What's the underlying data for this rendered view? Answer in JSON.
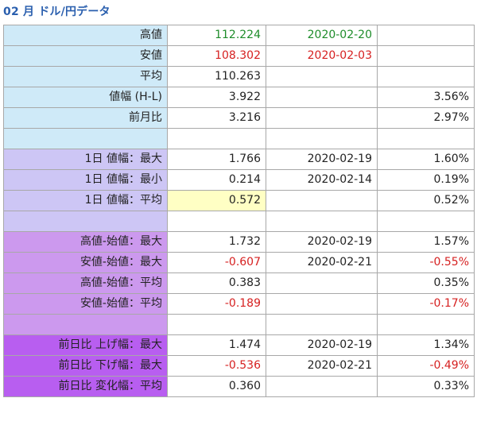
{
  "page_title": "02 月 ドル/円データ",
  "colors": {
    "label_blue": "#cfeaf8",
    "label_lavender": "#cdc6f5",
    "label_violet": "#cc99ee",
    "label_magenta": "#b85ef0",
    "highlight": "#ffffc4",
    "positive_green": "#1e8c2a",
    "negative_red": "#d62020",
    "title_blue": "#2a5fae"
  },
  "rows": [
    {
      "label": "高値",
      "value": "112.224",
      "date": "2020-02-20",
      "pct": "",
      "group": "blue",
      "value_color": "green",
      "date_color": "green"
    },
    {
      "label": "安値",
      "value": "108.302",
      "date": "2020-02-03",
      "pct": "",
      "group": "blue",
      "value_color": "red",
      "date_color": "red"
    },
    {
      "label": "平均",
      "value": "110.263",
      "date": "",
      "pct": "",
      "group": "blue"
    },
    {
      "label": "値幅 (H-L)",
      "value": "3.922",
      "date": "",
      "pct": "3.56%",
      "group": "blue"
    },
    {
      "label": "前月比",
      "value": "3.216",
      "date": "",
      "pct": "2.97%",
      "group": "blue"
    },
    {
      "label": "",
      "value": "",
      "date": "",
      "pct": "",
      "group": "blue"
    },
    {
      "label": "1日 値幅：最大",
      "value": "1.766",
      "date": "2020-02-19",
      "pct": "1.60%",
      "group": "lav"
    },
    {
      "label": "1日 値幅：最小",
      "value": "0.214",
      "date": "2020-02-14",
      "pct": "0.19%",
      "group": "lav"
    },
    {
      "label": "1日 値幅：平均",
      "value": "0.572",
      "date": "",
      "pct": "0.52%",
      "group": "lav",
      "highlight": true
    },
    {
      "label": "",
      "value": "",
      "date": "",
      "pct": "",
      "group": "lav"
    },
    {
      "label": "高値-始値：最大",
      "value": "1.732",
      "date": "2020-02-19",
      "pct": "1.57%",
      "group": "vio"
    },
    {
      "label": "安値-始値：最大",
      "value": "-0.607",
      "date": "2020-02-21",
      "pct": "-0.55%",
      "group": "vio",
      "value_color": "red",
      "pct_color": "red"
    },
    {
      "label": "高値-始値：平均",
      "value": "0.383",
      "date": "",
      "pct": "0.35%",
      "group": "vio"
    },
    {
      "label": "安値-始値：平均",
      "value": "-0.189",
      "date": "",
      "pct": "-0.17%",
      "group": "vio",
      "value_color": "red",
      "pct_color": "red"
    },
    {
      "label": "",
      "value": "",
      "date": "",
      "pct": "",
      "group": "vio"
    },
    {
      "label": "前日比 上げ幅：最大",
      "value": "1.474",
      "date": "2020-02-19",
      "pct": "1.34%",
      "group": "mag"
    },
    {
      "label": "前日比 下げ幅：最大",
      "value": "-0.536",
      "date": "2020-02-21",
      "pct": "-0.49%",
      "group": "mag",
      "value_color": "red",
      "pct_color": "red"
    },
    {
      "label": "前日比 変化幅：平均",
      "value": "0.360",
      "date": "",
      "pct": "0.33%",
      "group": "mag"
    }
  ]
}
